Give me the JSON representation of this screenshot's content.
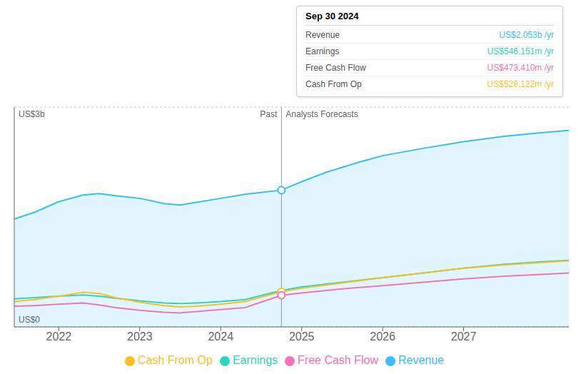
{
  "chart_data": {
    "type": "line",
    "xlim": [
      2021.45,
      2028.3
    ],
    "xticks": [
      2022,
      2023,
      2024,
      2025,
      2026,
      2027
    ],
    "ylim": [
      0,
      3.3
    ],
    "yticks": [
      0,
      1,
      2,
      3
    ],
    "grid": true,
    "tick_labels": "x",
    "legend": "bottom",
    "ylabel_top": "US$3b",
    "ylabel_bottom": "US$0",
    "divider": {
      "x": 2024.75,
      "left_label": "Past",
      "right_label": "Analysts Forecasts"
    },
    "highlight_points": [
      {
        "series": "Revenue",
        "x": 2024.75,
        "y": 2.053
      },
      {
        "series": "Cash From Op",
        "x": 2024.75,
        "y": 0.528
      },
      {
        "series": "Free Cash Flow",
        "x": 2024.75,
        "y": 0.473
      }
    ],
    "tooltip": {
      "title": "Sep 30 2024",
      "rows": [
        {
          "label": "Revenue",
          "value": "US$2.053b /yr",
          "color": "#38bdf8"
        },
        {
          "label": "Earnings",
          "value": "US$546.151m /yr",
          "color": "#2dd4bf"
        },
        {
          "label": "Free Cash Flow",
          "value": "US$473.410m /yr",
          "color": "#f472b6"
        },
        {
          "label": "Cash From Op",
          "value": "US$528.122m /yr",
          "color": "#fbbf24"
        }
      ]
    },
    "series": [
      {
        "name": "Revenue",
        "type": "area",
        "color": "#38bdf8",
        "x": [
          2021.45,
          2021.7,
          2022.0,
          2022.3,
          2022.5,
          2022.7,
          2023.0,
          2023.3,
          2023.5,
          2023.7,
          2024.0,
          2024.3,
          2024.75,
          2025.0,
          2025.3,
          2025.7,
          2026.0,
          2026.5,
          2027.0,
          2027.5,
          2028.0,
          2028.3
        ],
        "values": [
          1.62,
          1.72,
          1.88,
          1.98,
          2.0,
          1.97,
          1.93,
          1.85,
          1.83,
          1.87,
          1.93,
          1.99,
          2.053,
          2.18,
          2.32,
          2.47,
          2.57,
          2.68,
          2.78,
          2.86,
          2.92,
          2.95
        ]
      },
      {
        "name": "Earnings",
        "type": "line",
        "color": "#2dd4bf",
        "x": [
          2021.45,
          2021.7,
          2022.0,
          2022.3,
          2022.5,
          2022.7,
          2023.0,
          2023.3,
          2023.5,
          2023.7,
          2024.0,
          2024.3,
          2024.75,
          2025.0,
          2025.5,
          2026.0,
          2026.5,
          2027.0,
          2027.5,
          2028.0,
          2028.3
        ],
        "values": [
          0.42,
          0.44,
          0.46,
          0.48,
          0.46,
          0.43,
          0.39,
          0.36,
          0.35,
          0.36,
          0.38,
          0.41,
          0.546,
          0.6,
          0.67,
          0.74,
          0.81,
          0.88,
          0.94,
          0.98,
          1.0
        ]
      },
      {
        "name": "Free Cash Flow",
        "type": "line",
        "color": "#f472b6",
        "x": [
          2021.45,
          2021.7,
          2022.0,
          2022.3,
          2022.5,
          2022.7,
          2023.0,
          2023.3,
          2023.5,
          2023.7,
          2024.0,
          2024.3,
          2024.75,
          2025.0,
          2025.5,
          2026.0,
          2026.5,
          2027.0,
          2027.5,
          2028.0,
          2028.3
        ],
        "values": [
          0.31,
          0.32,
          0.34,
          0.36,
          0.33,
          0.29,
          0.25,
          0.22,
          0.21,
          0.23,
          0.26,
          0.29,
          0.473,
          0.51,
          0.57,
          0.62,
          0.67,
          0.72,
          0.76,
          0.79,
          0.81
        ]
      },
      {
        "name": "Cash From Op",
        "type": "line",
        "color": "#fbbf24",
        "x": [
          2021.45,
          2021.7,
          2022.0,
          2022.3,
          2022.5,
          2022.7,
          2023.0,
          2023.3,
          2023.5,
          2023.7,
          2024.0,
          2024.3,
          2024.75,
          2025.0,
          2025.5,
          2026.0,
          2026.5,
          2027.0,
          2027.5,
          2028.0,
          2028.3
        ],
        "values": [
          0.38,
          0.41,
          0.46,
          0.52,
          0.5,
          0.44,
          0.37,
          0.32,
          0.3,
          0.31,
          0.34,
          0.38,
          0.528,
          0.58,
          0.66,
          0.74,
          0.81,
          0.88,
          0.93,
          0.97,
          0.99
        ]
      }
    ]
  }
}
